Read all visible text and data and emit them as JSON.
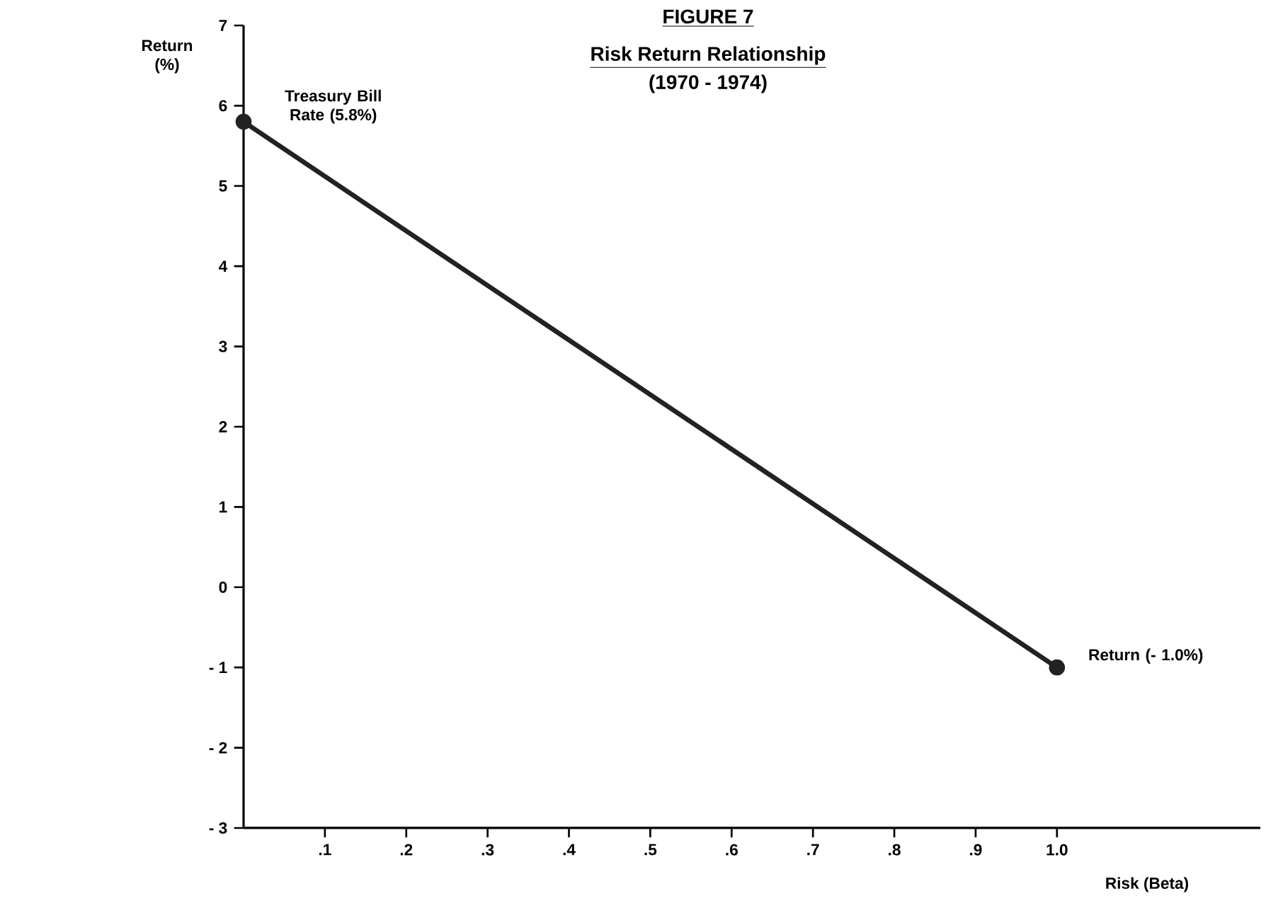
{
  "chart_data": {
    "type": "line",
    "title": "FIGURE 7",
    "subtitle": "Risk Return Relationship",
    "xlabel": "Risk (Beta)",
    "ylabel": "Return (%)",
    "annotations": [
      "(1970 - 1974)",
      {
        "text": "Treasury Bill Rate (5.8%)",
        "x": 0,
        "y": 5.8
      },
      {
        "text": "Return (- 1.0%)",
        "x": 1.0,
        "y": -1.0
      }
    ],
    "series": [
      {
        "color": "#222222",
        "x": [
          0,
          1.0
        ],
        "values": [
          5.8,
          -1.0
        ]
      }
    ],
    "xlim": [
      0,
      1.25
    ],
    "ylim": [
      -3,
      7
    ],
    "xticks": [
      {
        "value": 0.1,
        "label": ".1"
      },
      {
        "value": 0.2,
        "label": ".2"
      },
      {
        "value": 0.3,
        "label": ".3"
      },
      {
        "value": 0.4,
        "label": ".4"
      },
      {
        "value": 0.5,
        "label": ".5"
      },
      {
        "value": 0.6,
        "label": ".6"
      },
      {
        "value": 0.7,
        "label": ".7"
      },
      {
        "value": 0.8,
        "label": ".8"
      },
      {
        "value": 0.9,
        "label": ".9"
      },
      {
        "value": 1.0,
        "label": "1.0"
      }
    ],
    "yticks": [
      {
        "value": -3,
        "label": "- 3"
      },
      {
        "value": -2,
        "label": "- 2"
      },
      {
        "value": -1,
        "label": "- 1"
      },
      0,
      1,
      2,
      3,
      4,
      5,
      6,
      7
    ],
    "marker": "circle",
    "line_style": "solid",
    "grid": false
  }
}
